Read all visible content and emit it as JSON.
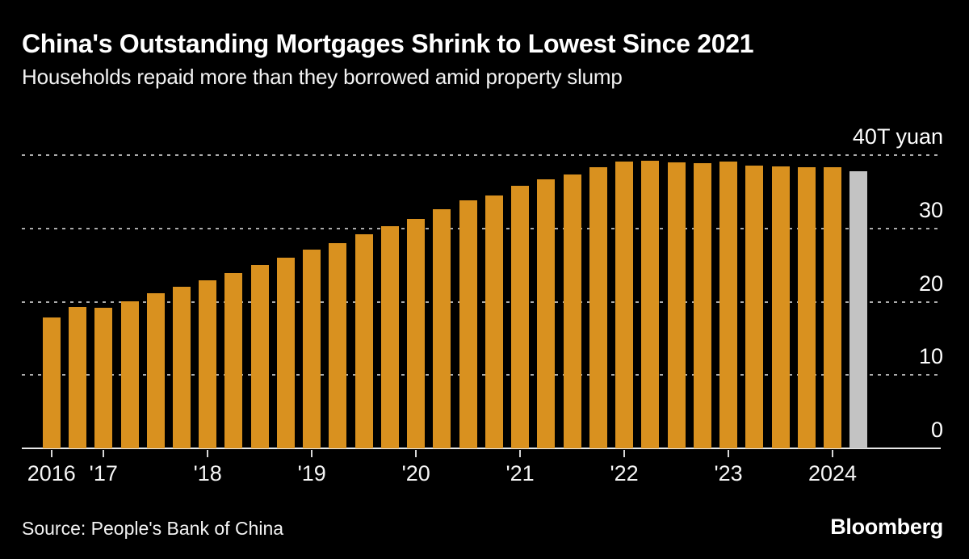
{
  "header": {
    "title": "China's Outstanding Mortgages Shrink to Lowest Since 2021",
    "subtitle": "Households repaid more than they borrowed amid property slump"
  },
  "footer": {
    "source": "Source: People's Bank of China",
    "brand": "Bloomberg"
  },
  "chart_data": {
    "type": "bar",
    "title": "China's Outstanding Mortgages Shrink to Lowest Since 2021",
    "subtitle": "Households repaid more than they borrowed amid property slump",
    "unit": "T yuan",
    "ylim": [
      0,
      40
    ],
    "grid": "horizontal-dotted",
    "legend_position": "none",
    "y_ticks": [
      {
        "value": 0,
        "label": "0"
      },
      {
        "value": 10,
        "label": "10"
      },
      {
        "value": 20,
        "label": "20"
      },
      {
        "value": 30,
        "label": "30"
      },
      {
        "value": 40,
        "label": "40T yuan"
      }
    ],
    "x_year_ticks": [
      {
        "label": "2016",
        "bar_index": 0
      },
      {
        "label": "'17",
        "bar_index": 2
      },
      {
        "label": "'18",
        "bar_index": 6
      },
      {
        "label": "'19",
        "bar_index": 10
      },
      {
        "label": "'20",
        "bar_index": 14
      },
      {
        "label": "'21",
        "bar_index": 18
      },
      {
        "label": "'22",
        "bar_index": 22
      },
      {
        "label": "'23",
        "bar_index": 26
      },
      {
        "label": "2024",
        "bar_index": 30
      }
    ],
    "categories": [
      "2016 Q3",
      "2016 Q4",
      "2017 Q1",
      "2017 Q2",
      "2017 Q3",
      "2017 Q4",
      "2018 Q1",
      "2018 Q2",
      "2018 Q3",
      "2018 Q4",
      "2019 Q1",
      "2019 Q2",
      "2019 Q3",
      "2019 Q4",
      "2020 Q1",
      "2020 Q2",
      "2020 Q3",
      "2020 Q4",
      "2021 Q1",
      "2021 Q2",
      "2021 Q3",
      "2021 Q4",
      "2022 Q1",
      "2022 Q2",
      "2022 Q3",
      "2022 Q4",
      "2023 Q1",
      "2023 Q2",
      "2023 Q3",
      "2023 Q4",
      "2024 Q1",
      "2024 Q2"
    ],
    "values": [
      17.9,
      19.3,
      19.2,
      20.1,
      21.2,
      22.0,
      22.9,
      23.9,
      25.0,
      26.0,
      27.1,
      28.0,
      29.2,
      30.3,
      31.3,
      32.6,
      33.8,
      34.5,
      35.8,
      36.7,
      37.4,
      38.4,
      39.1,
      39.2,
      39.0,
      38.9,
      39.1,
      38.6,
      38.5,
      38.3,
      38.3,
      37.8
    ],
    "highlight_index": 31,
    "colors": {
      "bar": "#D9911F",
      "highlight_bar": "#C3C3C3",
      "gridline": "#ABABAB",
      "axis": "#E8E8E8",
      "text": "#FFFFFF",
      "background": "#000000"
    }
  }
}
